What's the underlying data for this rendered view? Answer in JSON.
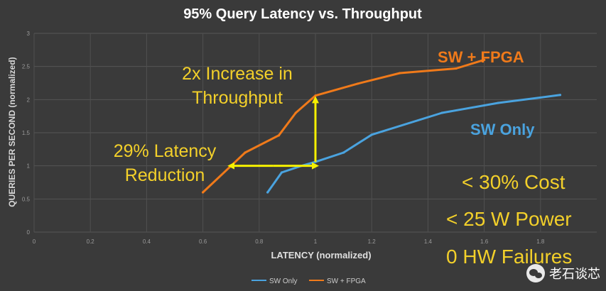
{
  "chart_data": {
    "type": "line",
    "title": "95% Query Latency vs. Throughput",
    "xlabel": "LATENCY (normalized)",
    "ylabel": "QUERIES PER SECOND (normalized)",
    "xlim": [
      0,
      2
    ],
    "ylim": [
      0,
      3
    ],
    "x_ticks": [
      "0",
      "0.2",
      "0.4",
      "0.6",
      "0.8",
      "1",
      "1.2",
      "1.4",
      "1.6",
      "1.8"
    ],
    "y_ticks": [
      "0",
      "0.5",
      "1",
      "1.5",
      "2",
      "2.5",
      "3"
    ],
    "grid": true,
    "legend_position": "bottom-center",
    "series": [
      {
        "name": "SW Only",
        "color": "#4aa3df",
        "x": [
          0.83,
          0.88,
          0.95,
          1.0,
          1.1,
          1.2,
          1.45,
          1.65,
          1.87
        ],
        "y": [
          0.6,
          0.9,
          1.0,
          1.06,
          1.2,
          1.47,
          1.8,
          1.95,
          2.07
        ]
      },
      {
        "name": "SW + FPGA",
        "color": "#f07a1a",
        "x": [
          0.6,
          0.7,
          0.75,
          0.87,
          0.93,
          1.0,
          1.15,
          1.3,
          1.5,
          1.6
        ],
        "y": [
          0.6,
          1.0,
          1.2,
          1.46,
          1.8,
          2.06,
          2.24,
          2.4,
          2.47,
          2.6
        ]
      }
    ],
    "annotations": {
      "series_label_fpga": "SW + FPGA",
      "series_label_sw": "SW Only",
      "throughput_line1": "2x Increase in",
      "throughput_line2": "Throughput",
      "latency_line1": "29% Latency",
      "latency_line2": "Reduction",
      "cost": "< 30% Cost",
      "power": "< 25 W Power",
      "failures": "0 HW Failures"
    }
  },
  "colors": {
    "annotation_yellow": "#f3d02a",
    "series_label_orange": "#f07a1a",
    "series_label_blue": "#4aa3df",
    "arrow_yellow": "#f5f000",
    "background": "#3a3a3a"
  },
  "watermark": {
    "icon": "wechat-icon",
    "text": "老石谈芯"
  }
}
